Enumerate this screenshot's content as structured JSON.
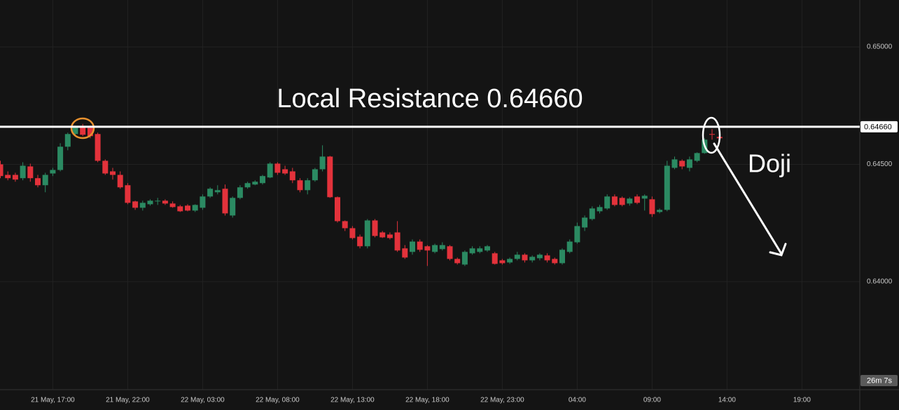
{
  "chart_data": {
    "type": "candlestick",
    "x": [
      "21 May, 13:30",
      "21 May, 14:00",
      "21 May, 14:30",
      "21 May, 15:00",
      "21 May, 15:30",
      "21 May, 16:00",
      "21 May, 16:30",
      "21 May, 17:00",
      "21 May, 17:30",
      "21 May, 18:00",
      "21 May, 18:30",
      "21 May, 19:00",
      "21 May, 19:30",
      "21 May, 20:00",
      "21 May, 20:30",
      "21 May, 21:00",
      "21 May, 21:30",
      "21 May, 22:00",
      "21 May, 22:30",
      "21 May, 23:00",
      "21 May, 23:30",
      "22 May, 00:00",
      "22 May, 00:30",
      "22 May, 01:00",
      "22 May, 01:30",
      "22 May, 02:00",
      "22 May, 02:30",
      "22 May, 03:00",
      "22 May, 03:30",
      "22 May, 04:00",
      "22 May, 04:30",
      "22 May, 05:00",
      "22 May, 05:30",
      "22 May, 06:00",
      "22 May, 06:30",
      "22 May, 07:00",
      "22 May, 07:30",
      "22 May, 08:00",
      "22 May, 08:30",
      "22 May, 09:00",
      "22 May, 09:30",
      "22 May, 10:00",
      "22 May, 10:30",
      "22 May, 11:00",
      "22 May, 11:30",
      "22 May, 12:00",
      "22 May, 12:30",
      "22 May, 13:00",
      "22 May, 13:30",
      "22 May, 14:00",
      "22 May, 14:30",
      "22 May, 15:00",
      "22 May, 15:30",
      "22 May, 16:00",
      "22 May, 16:30",
      "22 May, 17:00",
      "22 May, 17:30",
      "22 May, 18:00",
      "22 May, 18:30",
      "22 May, 19:00",
      "22 May, 19:30",
      "22 May, 20:00",
      "22 May, 20:30",
      "22 May, 21:00",
      "22 May, 21:30",
      "22 May, 22:00",
      "22 May, 22:30",
      "22 May, 23:00",
      "22 May, 23:30",
      "23 May, 00:00",
      "23 May, 00:30",
      "23 May, 01:00",
      "23 May, 01:30",
      "23 May, 02:00",
      "23 May, 02:30",
      "23 May, 03:00",
      "23 May, 03:30",
      "23 May, 04:00",
      "23 May, 04:30",
      "23 May, 05:00",
      "23 May, 05:30",
      "23 May, 06:00",
      "23 May, 06:30",
      "23 May, 07:00",
      "23 May, 07:30",
      "23 May, 08:00",
      "23 May, 08:30",
      "23 May, 09:00",
      "23 May, 09:30",
      "23 May, 10:00",
      "23 May, 10:30",
      "23 May, 11:00",
      "23 May, 11:30",
      "23 May, 12:00",
      "23 May, 12:30",
      "23 May, 13:00",
      "23 May, 13:30"
    ],
    "open": [
      0.645,
      0.64455,
      0.64455,
      0.64441,
      0.64491,
      0.64441,
      0.64411,
      0.64461,
      0.64476,
      0.64575,
      0.64629,
      0.6466,
      0.64656,
      0.64629,
      0.64515,
      0.6447,
      0.64455,
      0.64411,
      0.64342,
      0.64315,
      0.6433,
      0.64342,
      0.64345,
      0.64333,
      0.64321,
      0.64324,
      0.64303,
      0.64315,
      0.64363,
      0.64381,
      0.64396,
      0.64282,
      0.64357,
      0.64402,
      0.64414,
      0.6442,
      0.64444,
      0.64503,
      0.64479,
      0.6447,
      0.64432,
      0.6439,
      0.64432,
      0.64479,
      0.64533,
      0.6436,
      0.64258,
      0.64228,
      0.64192,
      0.64151,
      0.64261,
      0.6421,
      0.64201,
      0.6421,
      0.64142,
      0.64127,
      0.64171,
      0.64151,
      0.64127,
      0.64139,
      0.64151,
      0.64097,
      0.64073,
      0.64121,
      0.64127,
      0.64133,
      0.64121,
      0.64091,
      0.64082,
      0.64097,
      0.64115,
      0.64091,
      0.641,
      0.64112,
      0.64097,
      0.64079,
      0.64127,
      0.64168,
      0.64231,
      0.64267,
      0.643,
      0.64312,
      0.64363,
      0.64357,
      0.64333,
      0.64363,
      0.64354,
      0.64351,
      0.64297,
      0.64306,
      0.64485,
      0.64515,
      0.64485,
      0.64515,
      0.64548,
      0.64629,
      0.64617
    ],
    "high": [
      0.64515,
      0.6447,
      0.64464,
      0.64509,
      0.64503,
      0.64455,
      0.64464,
      0.64485,
      0.6459,
      0.64635,
      0.64665,
      0.64672,
      0.64665,
      0.64635,
      0.64521,
      0.64485,
      0.6447,
      0.6442,
      0.64345,
      0.64345,
      0.64351,
      0.64357,
      0.64351,
      0.64342,
      0.64327,
      0.6433,
      0.6433,
      0.64372,
      0.64402,
      0.64411,
      0.64414,
      0.64363,
      0.64411,
      0.64426,
      0.64432,
      0.64455,
      0.64509,
      0.64509,
      0.64494,
      0.64485,
      0.64441,
      0.64441,
      0.64485,
      0.64581,
      0.64536,
      0.64363,
      0.64261,
      0.64237,
      0.64201,
      0.64267,
      0.64267,
      0.64216,
      0.6421,
      0.64258,
      0.64156,
      0.6418,
      0.6418,
      0.64156,
      0.64162,
      0.64168,
      0.64156,
      0.64103,
      0.64133,
      0.64151,
      0.64151,
      0.64156,
      0.64127,
      0.64097,
      0.64103,
      0.64127,
      0.64121,
      0.64112,
      0.64121,
      0.64121,
      0.64103,
      0.64142,
      0.6418,
      0.64252,
      0.64282,
      0.64321,
      0.64327,
      0.64372,
      0.64372,
      0.64363,
      0.6436,
      0.64372,
      0.64372,
      0.64363,
      0.64312,
      0.64515,
      0.64533,
      0.64521,
      0.64533,
      0.64551,
      0.64611,
      0.6465,
      0.6462
    ],
    "low": [
      0.64441,
      0.64432,
      0.64426,
      0.64432,
      0.64426,
      0.64402,
      0.64381,
      0.6445,
      0.6447,
      0.6456,
      0.6462,
      0.6462,
      0.64611,
      0.64509,
      0.64455,
      0.64435,
      0.64396,
      0.6433,
      0.64306,
      0.64303,
      0.64324,
      0.64327,
      0.64327,
      0.64315,
      0.64297,
      0.643,
      0.64297,
      0.64306,
      0.64357,
      0.64372,
      0.64282,
      0.64273,
      0.64351,
      0.64396,
      0.64411,
      0.64414,
      0.64441,
      0.64455,
      0.64455,
      0.6442,
      0.64381,
      0.64372,
      0.64426,
      0.6447,
      0.64357,
      0.64252,
      0.64216,
      0.6418,
      0.64142,
      0.64142,
      0.64189,
      0.64186,
      0.6418,
      0.64127,
      0.64097,
      0.64115,
      0.64127,
      0.64067,
      0.64121,
      0.64133,
      0.64091,
      0.64073,
      0.64067,
      0.64115,
      0.64121,
      0.64127,
      0.64073,
      0.64073,
      0.64076,
      0.64091,
      0.64082,
      0.64082,
      0.64091,
      0.64082,
      0.64073,
      0.64073,
      0.64121,
      0.64162,
      0.64216,
      0.64261,
      0.64291,
      0.64306,
      0.64321,
      0.64321,
      0.64324,
      0.6433,
      0.64303,
      0.64276,
      0.64291,
      0.643,
      0.64479,
      0.64479,
      0.6447,
      0.64509,
      0.64545,
      0.64605,
      0.64605
    ],
    "close": [
      0.6445,
      0.64441,
      0.64435,
      0.64494,
      0.64441,
      0.64411,
      0.64455,
      0.64476,
      0.64575,
      0.64629,
      0.64656,
      0.64626,
      0.6462,
      0.64515,
      0.64461,
      0.64455,
      0.64402,
      0.64336,
      0.64315,
      0.64336,
      0.64345,
      0.64345,
      0.64333,
      0.64318,
      0.643,
      0.64303,
      0.64327,
      0.64363,
      0.64396,
      0.6439,
      0.64291,
      0.64357,
      0.64402,
      0.6442,
      0.64426,
      0.6445,
      0.64503,
      0.64464,
      0.64461,
      0.64432,
      0.6439,
      0.64432,
      0.64479,
      0.64533,
      0.6436,
      0.64258,
      0.64228,
      0.64186,
      0.64151,
      0.64261,
      0.64195,
      0.64189,
      0.64186,
      0.64133,
      0.64103,
      0.64171,
      0.64136,
      0.64133,
      0.64156,
      0.64156,
      0.64097,
      0.64079,
      0.64127,
      0.64142,
      0.64142,
      0.64151,
      0.64076,
      0.64079,
      0.64097,
      0.64115,
      0.64091,
      0.64106,
      0.64115,
      0.64091,
      0.64079,
      0.64136,
      0.64171,
      0.64237,
      0.64273,
      0.64312,
      0.64318,
      0.64363,
      0.64327,
      0.64327,
      0.64354,
      0.64336,
      0.64366,
      0.64288,
      0.64306,
      0.64494,
      0.64521,
      0.64491,
      0.64521,
      0.64548,
      0.64605,
      0.64626,
      0.64611
    ],
    "up_color": "#2b8a62",
    "down_color": "#e3323b",
    "ylim": [
      0.6354,
      0.652
    ],
    "yticks": [
      {
        "value": 0.64,
        "label": "0.64000"
      },
      {
        "value": 0.645,
        "label": "0.64500"
      },
      {
        "value": 0.65,
        "label": "0.65000"
      }
    ],
    "xticks": [
      {
        "value": "21 May, 17:00",
        "label": "21 May, 17:00"
      },
      {
        "value": "21 May, 22:00",
        "label": "21 May, 22:00"
      },
      {
        "value": "22 May, 03:00",
        "label": "22 May, 03:00"
      },
      {
        "value": "22 May, 08:00",
        "label": "22 May, 08:00"
      },
      {
        "value": "22 May, 13:00",
        "label": "22 May, 13:00"
      },
      {
        "value": "22 May, 18:00",
        "label": "22 May, 18:00"
      },
      {
        "value": "22 May, 23:00",
        "label": "22 May, 23:00"
      },
      {
        "value": "23 May, 04:00",
        "label": "04:00"
      },
      {
        "value": "23 May, 09:00",
        "label": "09:00"
      },
      {
        "value": "23 May, 14:00",
        "label": "14:00"
      },
      {
        "value": "23 May, 19:00",
        "label": "19:00"
      }
    ],
    "grid": true,
    "resistance": {
      "value": 0.6466,
      "label": "0.64660"
    },
    "annotations": [
      {
        "text": "Local Resistance 0.64660"
      },
      {
        "text": "Doji"
      }
    ],
    "countdown": "26m 7s"
  }
}
